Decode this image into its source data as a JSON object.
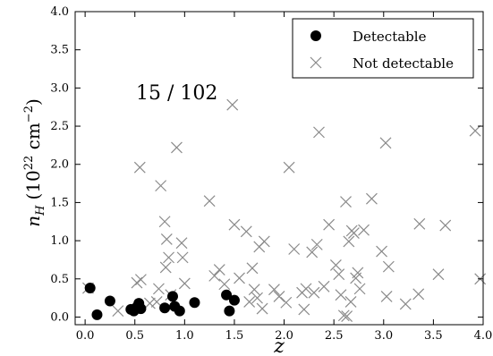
{
  "chart_data": {
    "type": "scatter",
    "xlabel": "z",
    "ylabel_main": "n",
    "ylabel_sub": "H",
    "ylabel_unit_open": "(10",
    "ylabel_unit_exp": "22",
    "ylabel_unit_mid": " cm",
    "ylabel_unit_exp2": "−2",
    "ylabel_unit_close": ")",
    "xlim": [
      -0.1,
      4.0
    ],
    "ylim": [
      -0.1,
      4.0
    ],
    "xticks": [
      {
        "value": 0.0,
        "label": "0.0"
      },
      {
        "value": 0.5,
        "label": "0.5"
      },
      {
        "value": 1.0,
        "label": "1.0"
      },
      {
        "value": 1.5,
        "label": "1.5"
      },
      {
        "value": 2.0,
        "label": "2.0"
      },
      {
        "value": 2.5,
        "label": "2.5"
      },
      {
        "value": 3.0,
        "label": "3.0"
      },
      {
        "value": 3.5,
        "label": "3.5"
      },
      {
        "value": 4.0,
        "label": "4.0"
      }
    ],
    "yticks": [
      {
        "value": 0.0,
        "label": "0.0"
      },
      {
        "value": 0.5,
        "label": "0.5"
      },
      {
        "value": 1.0,
        "label": "1.0"
      },
      {
        "value": 1.5,
        "label": "1.5"
      },
      {
        "value": 2.0,
        "label": "2.0"
      },
      {
        "value": 2.5,
        "label": "2.5"
      },
      {
        "value": 3.0,
        "label": "3.0"
      },
      {
        "value": 3.5,
        "label": "3.5"
      },
      {
        "value": 4.0,
        "label": "4.0"
      }
    ],
    "grid": false,
    "legend_position": "top-right",
    "annotation": "15 / 102",
    "series": [
      {
        "name": "Detectable",
        "marker": "filled-circle",
        "color": "#000000",
        "points": [
          [
            0.05,
            0.38
          ],
          [
            0.12,
            0.03
          ],
          [
            0.25,
            0.21
          ],
          [
            0.46,
            0.1
          ],
          [
            0.49,
            0.08
          ],
          [
            0.52,
            0.13
          ],
          [
            0.54,
            0.18
          ],
          [
            0.56,
            0.11
          ],
          [
            0.8,
            0.12
          ],
          [
            0.88,
            0.27
          ],
          [
            0.9,
            0.14
          ],
          [
            0.95,
            0.08
          ],
          [
            1.1,
            0.19
          ],
          [
            1.42,
            0.29
          ],
          [
            1.45,
            0.08
          ],
          [
            1.5,
            0.22
          ]
        ]
      },
      {
        "name": "Not detectable",
        "marker": "x",
        "color": "#8a8a8a",
        "points": [
          [
            0.03,
            0.38
          ],
          [
            0.33,
            0.08
          ],
          [
            0.52,
            0.45
          ],
          [
            0.55,
            1.96
          ],
          [
            0.56,
            0.49
          ],
          [
            0.65,
            0.18
          ],
          [
            0.72,
            0.2
          ],
          [
            0.74,
            0.37
          ],
          [
            0.76,
            1.72
          ],
          [
            0.8,
            1.25
          ],
          [
            0.81,
            0.65
          ],
          [
            0.82,
            1.02
          ],
          [
            0.84,
            0.78
          ],
          [
            0.86,
            0.29
          ],
          [
            0.92,
            2.22
          ],
          [
            0.97,
            0.97
          ],
          [
            0.98,
            0.78
          ],
          [
            1.0,
            0.44
          ],
          [
            1.25,
            1.52
          ],
          [
            1.3,
            0.54
          ],
          [
            1.35,
            0.62
          ],
          [
            1.4,
            0.43
          ],
          [
            1.48,
            2.78
          ],
          [
            1.5,
            1.21
          ],
          [
            1.55,
            0.51
          ],
          [
            1.62,
            1.12
          ],
          [
            1.65,
            0.2
          ],
          [
            1.68,
            0.64
          ],
          [
            1.7,
            0.36
          ],
          [
            1.73,
            0.25
          ],
          [
            1.75,
            0.92
          ],
          [
            1.78,
            0.11
          ],
          [
            1.8,
            0.99
          ],
          [
            1.9,
            0.36
          ],
          [
            1.95,
            0.27
          ],
          [
            2.02,
            0.19
          ],
          [
            2.05,
            1.96
          ],
          [
            2.1,
            0.89
          ],
          [
            2.18,
            0.32
          ],
          [
            2.2,
            0.1
          ],
          [
            2.22,
            0.37
          ],
          [
            2.28,
            0.85
          ],
          [
            2.3,
            0.32
          ],
          [
            2.33,
            0.95
          ],
          [
            2.35,
            2.42
          ],
          [
            2.4,
            0.4
          ],
          [
            2.45,
            1.21
          ],
          [
            2.52,
            0.68
          ],
          [
            2.55,
            0.56
          ],
          [
            2.57,
            0.29
          ],
          [
            2.6,
            0.02
          ],
          [
            2.62,
            1.51
          ],
          [
            2.63,
            0.01
          ],
          [
            2.65,
            0.99
          ],
          [
            2.67,
            0.2
          ],
          [
            2.68,
            1.13
          ],
          [
            2.7,
            1.1
          ],
          [
            2.72,
            0.51
          ],
          [
            2.74,
            0.58
          ],
          [
            2.76,
            0.37
          ],
          [
            2.8,
            1.14
          ],
          [
            2.88,
            1.55
          ],
          [
            2.98,
            0.86
          ],
          [
            3.02,
            2.28
          ],
          [
            3.03,
            0.27
          ],
          [
            3.05,
            0.66
          ],
          [
            3.22,
            0.17
          ],
          [
            3.35,
            0.3
          ],
          [
            3.36,
            1.22
          ],
          [
            3.55,
            0.56
          ],
          [
            3.62,
            1.2
          ],
          [
            3.92,
            2.44
          ],
          [
            3.97,
            0.5
          ]
        ]
      }
    ]
  }
}
